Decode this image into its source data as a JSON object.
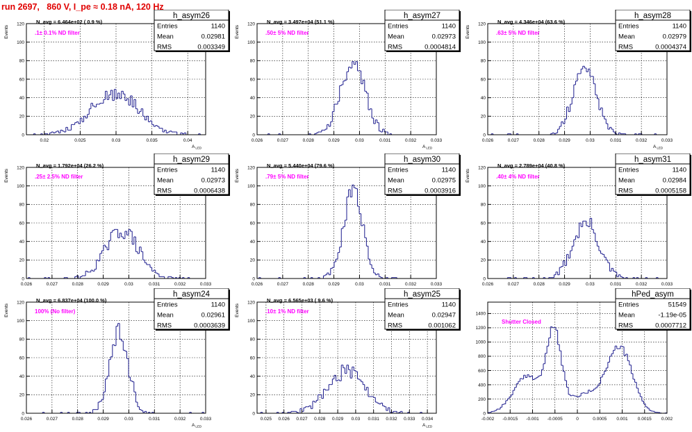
{
  "header": {
    "title": "run 2697,   860 V, I_pe ≈ 0.18 nA, 120 Hz"
  },
  "colors": {
    "hist_line": "#1a1a8c",
    "annotation": "#ff00ff",
    "title": "#e00000",
    "grid": "#000000"
  },
  "chart_data": [
    {
      "type": "bar",
      "name": "h_asym26",
      "navg": "N_avg = 6.464e+02 ( 0.9 %)",
      "filter": ".1± 0.1% ND filter",
      "stats": [
        [
          "Entries",
          "1140"
        ],
        [
          "Mean",
          "0.02981"
        ],
        [
          "RMS",
          "0.003349"
        ]
      ],
      "xlim": [
        0.0175,
        0.0425
      ],
      "ylim": [
        0,
        120
      ],
      "xticks": [
        0.02,
        0.025,
        0.03,
        0.035,
        0.04
      ],
      "xtick_labels": [
        "0.02",
        "0.025",
        "0.03",
        "0.035",
        "0.04"
      ],
      "yticks": [
        0,
        20,
        40,
        60,
        80,
        100,
        120
      ],
      "ytick_labels": [
        "0",
        "20",
        "40",
        "60",
        "80",
        "100",
        "120"
      ],
      "xlabel": "A",
      "xlabel_sub": "LED",
      "ylabel": "Events",
      "dist": {
        "type": "gauss",
        "mean": 0.02981,
        "sigma": 0.003349,
        "peak": 45,
        "bins": 100,
        "seed": 26
      }
    },
    {
      "type": "bar",
      "name": "h_asym27",
      "navg": "N_avg = 3.497e+04 (51.1 %)",
      "filter": ".50± 5% ND filter",
      "stats": [
        [
          "Entries",
          "1140"
        ],
        [
          "Mean",
          "0.02973"
        ],
        [
          "RMS",
          "0.0004814"
        ]
      ],
      "xlim": [
        0.026,
        0.033
      ],
      "ylim": [
        0,
        120
      ],
      "xticks": [
        0.026,
        0.027,
        0.028,
        0.029,
        0.03,
        0.031,
        0.032,
        0.033
      ],
      "xtick_labels": [
        "0.026",
        "0.027",
        "0.028",
        "0.029",
        "0.03",
        "0.031",
        "0.032",
        "0.033"
      ],
      "yticks": [
        0,
        20,
        40,
        60,
        80,
        100,
        120
      ],
      "ytick_labels": [
        "0",
        "20",
        "40",
        "60",
        "80",
        "100",
        "120"
      ],
      "xlabel": "A",
      "xlabel_sub": "LED",
      "ylabel": "Events",
      "dist": {
        "type": "gauss",
        "mean": 0.02973,
        "sigma": 0.0004814,
        "peak": 78,
        "bins": 100,
        "seed": 27
      }
    },
    {
      "type": "bar",
      "name": "h_asym28",
      "navg": "N_avg = 4.346e+04 (63.6 %)",
      "filter": ".63± 5% ND filter",
      "stats": [
        [
          "Entries",
          "1140"
        ],
        [
          "Mean",
          "0.02979"
        ],
        [
          "RMS",
          "0.0004374"
        ]
      ],
      "xlim": [
        0.026,
        0.033
      ],
      "ylim": [
        0,
        120
      ],
      "xticks": [
        0.026,
        0.027,
        0.028,
        0.029,
        0.03,
        0.031,
        0.032,
        0.033
      ],
      "xtick_labels": [
        "0.026",
        "0.027",
        "0.028",
        "0.029",
        "0.03",
        "0.031",
        "0.032",
        "0.033"
      ],
      "yticks": [
        0,
        20,
        40,
        60,
        80,
        100,
        120
      ],
      "ytick_labels": [
        "0",
        "20",
        "40",
        "60",
        "80",
        "100",
        "120"
      ],
      "xlabel": "A",
      "xlabel_sub": "LED",
      "ylabel": "Events",
      "dist": {
        "type": "gauss",
        "mean": 0.02979,
        "sigma": 0.0004374,
        "peak": 78,
        "bins": 100,
        "seed": 28
      }
    },
    {
      "type": "bar",
      "name": "h_asym29",
      "navg": "N_avg = 1.792e+04 (26.2 %)",
      "filter": ".25± 2.5% ND filter",
      "stats": [
        [
          "Entries",
          "1140"
        ],
        [
          "Mean",
          "0.02973"
        ],
        [
          "RMS",
          "0.0006438"
        ]
      ],
      "xlim": [
        0.026,
        0.033
      ],
      "ylim": [
        0,
        120
      ],
      "xticks": [
        0.026,
        0.027,
        0.028,
        0.029,
        0.03,
        0.031,
        0.032,
        0.033
      ],
      "xtick_labels": [
        "0.026",
        "0.027",
        "0.028",
        "0.029",
        "0.03",
        "0.031",
        "0.032",
        "0.033"
      ],
      "yticks": [
        0,
        20,
        40,
        60,
        80,
        100,
        120
      ],
      "ytick_labels": [
        "0",
        "20",
        "40",
        "60",
        "80",
        "100",
        "120"
      ],
      "xlabel": "A",
      "xlabel_sub": "LED",
      "ylabel": "Events",
      "dist": {
        "type": "gauss",
        "mean": 0.02973,
        "sigma": 0.0006438,
        "peak": 52,
        "bins": 100,
        "seed": 29
      }
    },
    {
      "type": "bar",
      "name": "h_asym30",
      "navg": "N_avg = 5.440e+04 (79.6 %)",
      "filter": ".79± 5% ND filter",
      "stats": [
        [
          "Entries",
          "1140"
        ],
        [
          "Mean",
          "0.02975"
        ],
        [
          "RMS",
          "0.0003916"
        ]
      ],
      "xlim": [
        0.026,
        0.033
      ],
      "ylim": [
        0,
        120
      ],
      "xticks": [
        0.026,
        0.027,
        0.028,
        0.029,
        0.03,
        0.031,
        0.032,
        0.033
      ],
      "xtick_labels": [
        "0.026",
        "0.027",
        "0.028",
        "0.029",
        "0.03",
        "0.031",
        "0.032",
        "0.033"
      ],
      "yticks": [
        0,
        20,
        40,
        60,
        80,
        100,
        120
      ],
      "ytick_labels": [
        "0",
        "20",
        "40",
        "60",
        "80",
        "100",
        "120"
      ],
      "xlabel": "A",
      "xlabel_sub": "LED",
      "ylabel": "Events",
      "dist": {
        "type": "gauss",
        "mean": 0.02975,
        "sigma": 0.0003916,
        "peak": 92,
        "bins": 100,
        "seed": 30
      }
    },
    {
      "type": "bar",
      "name": "h_asym31",
      "navg": "N_avg = 2.789e+04 (40.8 %)",
      "filter": ".40± 4% ND filter",
      "stats": [
        [
          "Entries",
          "1140"
        ],
        [
          "Mean",
          "0.02984"
        ],
        [
          "RMS",
          "0.0005158"
        ]
      ],
      "xlim": [
        0.026,
        0.033
      ],
      "ylim": [
        0,
        120
      ],
      "xticks": [
        0.026,
        0.027,
        0.028,
        0.029,
        0.03,
        0.031,
        0.032,
        0.033
      ],
      "xtick_labels": [
        "0.026",
        "0.027",
        "0.028",
        "0.029",
        "0.03",
        "0.031",
        "0.032",
        "0.033"
      ],
      "yticks": [
        0,
        20,
        40,
        60,
        80,
        100,
        120
      ],
      "ytick_labels": [
        "0",
        "20",
        "40",
        "60",
        "80",
        "100",
        "120"
      ],
      "xlabel": "A",
      "xlabel_sub": "LED",
      "ylabel": "Events",
      "dist": {
        "type": "gauss",
        "mean": 0.02984,
        "sigma": 0.0005158,
        "peak": 60,
        "bins": 100,
        "seed": 31
      }
    },
    {
      "type": "bar",
      "name": "h_asym24",
      "navg": "N_avg = 6.837e+04 (100.0 %)",
      "filter": "100% (No filter)",
      "stats": [
        [
          "Entries",
          "1140"
        ],
        [
          "Mean",
          "0.02961"
        ],
        [
          "RMS",
          "0.0003639"
        ]
      ],
      "xlim": [
        0.026,
        0.033
      ],
      "ylim": [
        0,
        120
      ],
      "xticks": [
        0.026,
        0.027,
        0.028,
        0.029,
        0.03,
        0.031,
        0.032,
        0.033
      ],
      "xtick_labels": [
        "0.026",
        "0.027",
        "0.028",
        "0.029",
        "0.03",
        "0.031",
        "0.032",
        "0.033"
      ],
      "yticks": [
        0,
        20,
        40,
        60,
        80,
        100,
        120
      ],
      "ytick_labels": [
        "0",
        "20",
        "40",
        "60",
        "80",
        "100",
        "120"
      ],
      "xlabel": "A",
      "xlabel_sub": "LED",
      "ylabel": "Events",
      "dist": {
        "type": "gauss",
        "mean": 0.02961,
        "sigma": 0.0003639,
        "peak": 90,
        "bins": 100,
        "seed": 24
      }
    },
    {
      "type": "bar",
      "name": "h_asym25",
      "navg": "N_avg = 6.565e+03 ( 9.6 %)",
      "filter": ".10± 1% ND filter",
      "stats": [
        [
          "Entries",
          "1140"
        ],
        [
          "Mean",
          "0.02947"
        ],
        [
          "RMS",
          "0.001062"
        ]
      ],
      "xlim": [
        0.0245,
        0.0345
      ],
      "ylim": [
        0,
        120
      ],
      "xticks": [
        0.025,
        0.026,
        0.027,
        0.028,
        0.029,
        0.03,
        0.031,
        0.032,
        0.033,
        0.034
      ],
      "xtick_labels": [
        "0.025",
        "0.026",
        "0.027",
        "0.028",
        "0.029",
        "0.03",
        "0.031",
        "0.032",
        "0.033",
        "0.034"
      ],
      "yticks": [
        0,
        20,
        40,
        60,
        80,
        100,
        120
      ],
      "ytick_labels": [
        "0",
        "20",
        "40",
        "60",
        "80",
        "100",
        "120"
      ],
      "xlabel": "A",
      "xlabel_sub": "LED",
      "ylabel": "Events",
      "dist": {
        "type": "gauss",
        "mean": 0.02947,
        "sigma": 0.001062,
        "peak": 45,
        "bins": 100,
        "seed": 25
      }
    },
    {
      "type": "bar",
      "name": "hPed_asym",
      "navg": "",
      "filter": "Shutter Closed",
      "stats": [
        [
          "Entries",
          "51549"
        ],
        [
          "Mean",
          "-1.19e-05"
        ],
        [
          "RMS",
          "0.0007712"
        ]
      ],
      "xlim": [
        -0.002,
        0.002
      ],
      "ylim": [
        0,
        1560
      ],
      "xticks": [
        -0.002,
        -0.0015,
        -0.001,
        -0.0005,
        0,
        0.0005,
        0.001,
        0.0015,
        0.002
      ],
      "xtick_labels": [
        "-0.002",
        "-0.0015",
        "-0.001",
        "-0.0005",
        "0",
        "0.0005",
        "0.001",
        "0.0015",
        "0.002"
      ],
      "yticks": [
        0,
        200,
        400,
        600,
        800,
        1000,
        1200,
        1400
      ],
      "ytick_labels": [
        "0",
        "200",
        "400",
        "600",
        "800",
        "1000",
        "1200",
        "1400"
      ],
      "xlabel": "",
      "xlabel_sub": "",
      "ylabel": "",
      "dist": {
        "type": "ped",
        "bins": 100,
        "seed": 99
      }
    }
  ]
}
